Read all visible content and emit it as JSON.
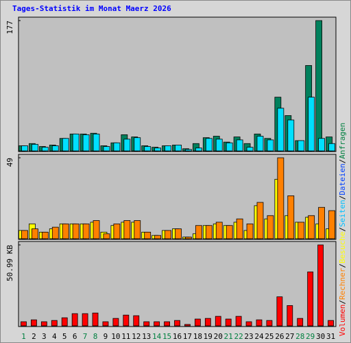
{
  "chart_data": [
    {
      "type": "bar",
      "title": "Tages-Statistik im Monat Maerz 2026",
      "legend": [
        {
          "name": "Volumen",
          "color": "#ff0000"
        },
        {
          "name": "Rechner",
          "color": "#ff8000"
        },
        {
          "name": "Besuche",
          "color": "#ffff00"
        },
        {
          "name": "Seiten",
          "color": "#00c0ff"
        },
        {
          "name": "Dateien",
          "color": "#0040ff"
        },
        {
          "name": "Anfragen",
          "color": "#008040"
        }
      ],
      "legend_separator": "/",
      "ylim": [
        0,
        177
      ],
      "yticks": [
        177
      ],
      "series": [
        {
          "color": "#00805c",
          "values": [
            7,
            10,
            6,
            8,
            17,
            23,
            23,
            24,
            7,
            11,
            22,
            19,
            7,
            5,
            7,
            8,
            3,
            10,
            18,
            20,
            12,
            19,
            10,
            23,
            17,
            73,
            48,
            14,
            116,
            177,
            19
          ]
        },
        {
          "color": "#00e0ff",
          "values": [
            7,
            9,
            5,
            7,
            17,
            23,
            22,
            23,
            6,
            11,
            16,
            18,
            6,
            4,
            7,
            8,
            2,
            4,
            17,
            16,
            11,
            15,
            5,
            20,
            15,
            58,
            42,
            14,
            73,
            17,
            10
          ]
        }
      ]
    },
    {
      "type": "bar",
      "ylim": [
        0,
        49
      ],
      "yticks": [
        49
      ],
      "series": [
        {
          "color": "#ffff00",
          "values": [
            5,
            9,
            4,
            6,
            9,
            9,
            9,
            10,
            4,
            8,
            10,
            10,
            4,
            2,
            5,
            6,
            1,
            3,
            8,
            9,
            8,
            10,
            5,
            20,
            12,
            36,
            14,
            10,
            13,
            9,
            6
          ]
        },
        {
          "color": "#ff8000",
          "values": [
            5,
            6,
            4,
            7,
            9,
            9,
            9,
            11,
            3,
            9,
            11,
            11,
            4,
            2,
            5,
            6,
            1,
            8,
            8,
            10,
            8,
            12,
            9,
            22,
            14,
            49,
            26,
            10,
            14,
            19,
            17
          ]
        }
      ]
    },
    {
      "type": "bar",
      "ylim": [
        0,
        50.99
      ],
      "yticks": [
        {
          "value": 50.99,
          "label": "50.99 KB"
        }
      ],
      "categories": [
        "1",
        "2",
        "3",
        "4",
        "5",
        "6",
        "7",
        "8",
        "9",
        "10",
        "11",
        "12",
        "13",
        "14",
        "15",
        "16",
        "17",
        "18",
        "19",
        "20",
        "21",
        "22",
        "23",
        "24",
        "25",
        "26",
        "27",
        "28",
        "29",
        "30",
        "31"
      ],
      "category_label_colors": [
        "#008040",
        "#000000",
        "#000000",
        "#000000",
        "#000000",
        "#000000",
        "#008040",
        "#008040",
        "#000000",
        "#000000",
        "#000000",
        "#000000",
        "#000000",
        "#008040",
        "#008040",
        "#000000",
        "#000000",
        "#000000",
        "#000000",
        "#000000",
        "#008040",
        "#008040",
        "#000000",
        "#000000",
        "#000000",
        "#000000",
        "#000000",
        "#008040",
        "#008040",
        "#000000",
        "#000000"
      ],
      "series": [
        {
          "color": "#ff0000",
          "values": [
            2.6,
            3.8,
            2.6,
            3.4,
            5.1,
            7.7,
            7.7,
            8.1,
            2.6,
            4.7,
            6.8,
            6.4,
            2.6,
            2.6,
            2.6,
            3.4,
            0.9,
            4.3,
            4.7,
            6.0,
            4.3,
            6.0,
            2.6,
            3.8,
            3.4,
            18.3,
            12.8,
            4.7,
            34.0,
            50.99,
            3.4
          ]
        }
      ]
    }
  ]
}
